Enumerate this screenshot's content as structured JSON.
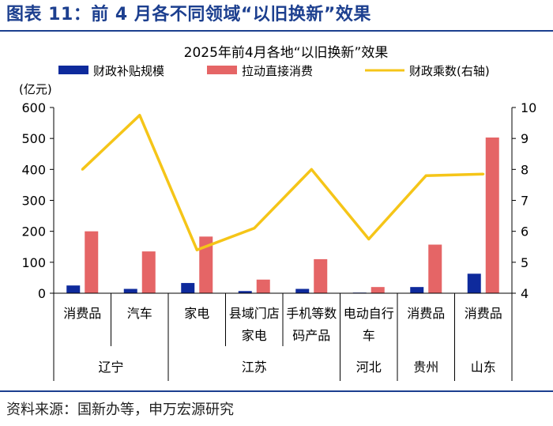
{
  "header": {
    "title": "图表 11：前 4 月各不同领域“以旧换新”效果"
  },
  "source": "资料来源：国新办等，申万宏源研究",
  "chart_data": {
    "type": "bar+line",
    "title": "2025年前4月各地“以旧换新”效果",
    "left_axis_unit": "(亿元)",
    "ylim_left": [
      0,
      600
    ],
    "left_ticks": [
      0,
      100,
      200,
      300,
      400,
      500,
      600
    ],
    "ylim_right": [
      4,
      10
    ],
    "right_ticks": [
      4,
      5,
      6,
      7,
      8,
      9,
      10
    ],
    "legend": [
      {
        "name": "财政补贴规模",
        "kind": "bar",
        "color": "#0e2a9c"
      },
      {
        "name": "拉动直接消费",
        "kind": "bar",
        "color": "#e56566"
      },
      {
        "name": "财政乘数(右轴)",
        "kind": "line",
        "color": "#f5c518"
      }
    ],
    "categories": [
      {
        "lines": [
          "消费品"
        ],
        "region": "辽宁"
      },
      {
        "lines": [
          "汽车"
        ],
        "region": "辽宁"
      },
      {
        "lines": [
          "家电"
        ],
        "region": "江苏"
      },
      {
        "lines": [
          "县域门店",
          "家电"
        ],
        "region": "江苏"
      },
      {
        "lines": [
          "手机等数",
          "码产品"
        ],
        "region": "江苏"
      },
      {
        "lines": [
          "电动自行",
          "车"
        ],
        "region": "河北"
      },
      {
        "lines": [
          "消费品"
        ],
        "region": "贵州"
      },
      {
        "lines": [
          "消费品"
        ],
        "region": "山东"
      }
    ],
    "regions": [
      {
        "name": "辽宁",
        "count": 2
      },
      {
        "name": "江苏",
        "count": 3
      },
      {
        "name": "河北",
        "count": 1
      },
      {
        "name": "贵州",
        "count": 1
      },
      {
        "name": "山东",
        "count": 1
      }
    ],
    "series": [
      {
        "name": "财政补贴规模",
        "axis": "left",
        "values": [
          25,
          14,
          33,
          7,
          14,
          2,
          20,
          63
        ]
      },
      {
        "name": "拉动直接消费",
        "axis": "left",
        "values": [
          200,
          135,
          183,
          44,
          110,
          20,
          157,
          503
        ]
      },
      {
        "name": "财政乘数(右轴)",
        "axis": "right",
        "values": [
          8.0,
          9.75,
          5.4,
          6.1,
          8.0,
          5.75,
          7.8,
          7.85
        ]
      }
    ]
  }
}
